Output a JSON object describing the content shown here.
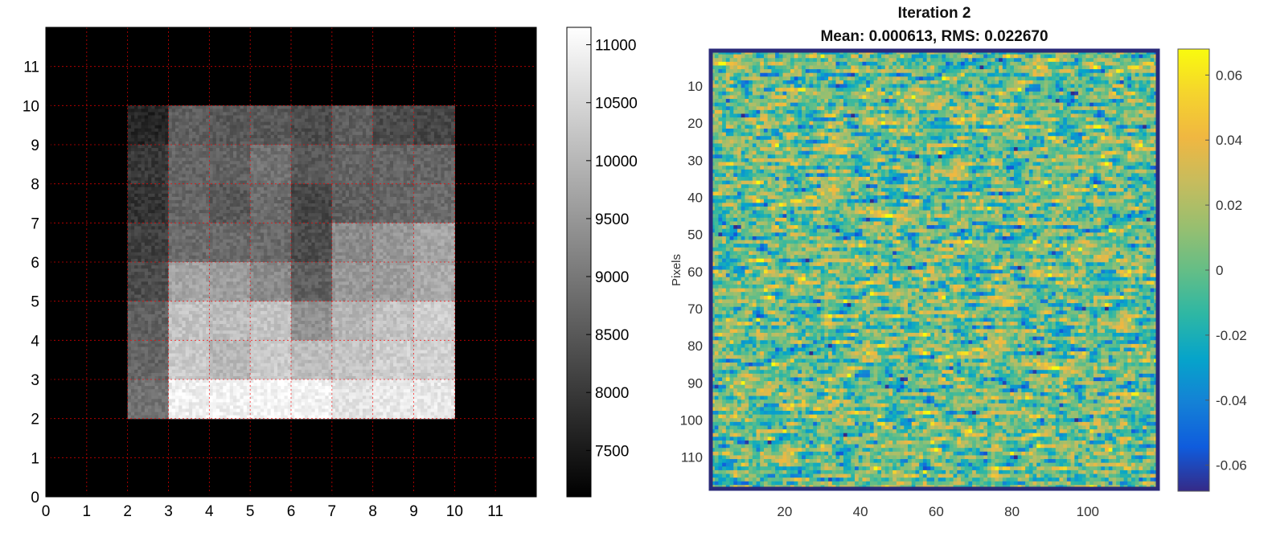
{
  "chart_data": [
    {
      "type": "heatmap",
      "title": "",
      "xlabel": "",
      "ylabel": "",
      "xlim": [
        0,
        12
      ],
      "ylim": [
        0,
        12
      ],
      "xticks": [
        "0",
        "1",
        "2",
        "3",
        "4",
        "5",
        "6",
        "7",
        "8",
        "9",
        "10",
        "11"
      ],
      "yticks": [
        "0",
        "1",
        "2",
        "3",
        "4",
        "5",
        "6",
        "7",
        "8",
        "9",
        "10",
        "11"
      ],
      "grid": true,
      "grid_color": "#ff0000",
      "colormap": "gray",
      "color_range": [
        7100,
        11150
      ],
      "colorbar_ticks": [
        "7500",
        "8000",
        "8500",
        "9000",
        "9500",
        "10000",
        "10500",
        "11000"
      ],
      "colorbar_tick_values": [
        7500,
        8000,
        8500,
        9000,
        9500,
        10000,
        10500,
        11000
      ],
      "background_value": 7100,
      "data_extent": {
        "x": [
          2,
          10
        ],
        "y": [
          2,
          10
        ]
      },
      "cell_rows_top_to_bottom": [
        [
          7700,
          8600,
          8500,
          8500,
          8300,
          8600,
          8300,
          8200
        ],
        [
          8000,
          8700,
          8650,
          8900,
          8500,
          8700,
          8700,
          8700
        ],
        [
          7900,
          8700,
          8500,
          8800,
          8200,
          8600,
          8700,
          8800
        ],
        [
          8100,
          8800,
          8800,
          8800,
          8300,
          9300,
          9500,
          9700
        ],
        [
          8300,
          9700,
          9600,
          9300,
          8600,
          9500,
          9600,
          9800
        ],
        [
          8600,
          10200,
          10100,
          10200,
          9400,
          10000,
          10200,
          10400
        ],
        [
          8700,
          10300,
          10000,
          10300,
          10100,
          10200,
          10400,
          10400
        ],
        [
          8900,
          10900,
          10950,
          11000,
          10950,
          10700,
          10800,
          10800
        ]
      ]
    },
    {
      "type": "heatmap",
      "title": "Iteration 2",
      "subtitle": "Mean: 0.000613, RMS: 0.022670",
      "xlabel": "",
      "ylabel": "Pixels",
      "xlim": [
        1,
        118
      ],
      "ylim": [
        1,
        118
      ],
      "xticks": [
        "20",
        "40",
        "60",
        "80",
        "100"
      ],
      "xtick_values": [
        20,
        40,
        60,
        80,
        100
      ],
      "yticks": [
        "10",
        "20",
        "30",
        "40",
        "50",
        "60",
        "70",
        "80",
        "90",
        "100",
        "110"
      ],
      "ytick_values": [
        10,
        20,
        30,
        40,
        50,
        60,
        70,
        80,
        90,
        100,
        110
      ],
      "colormap": "parula",
      "color_range": [
        -0.068,
        0.068
      ],
      "colorbar_ticks": [
        "0.06",
        "0.04",
        "0.02",
        "0",
        "-0.02",
        "-0.04",
        "-0.06"
      ],
      "colorbar_tick_values": [
        0.06,
        0.04,
        0.02,
        0,
        -0.02,
        -0.04,
        -0.06
      ],
      "mean": 0.000613,
      "rms": 0.02267,
      "grid_size": [
        118,
        118
      ],
      "frame_color": "#2a2a78"
    }
  ]
}
